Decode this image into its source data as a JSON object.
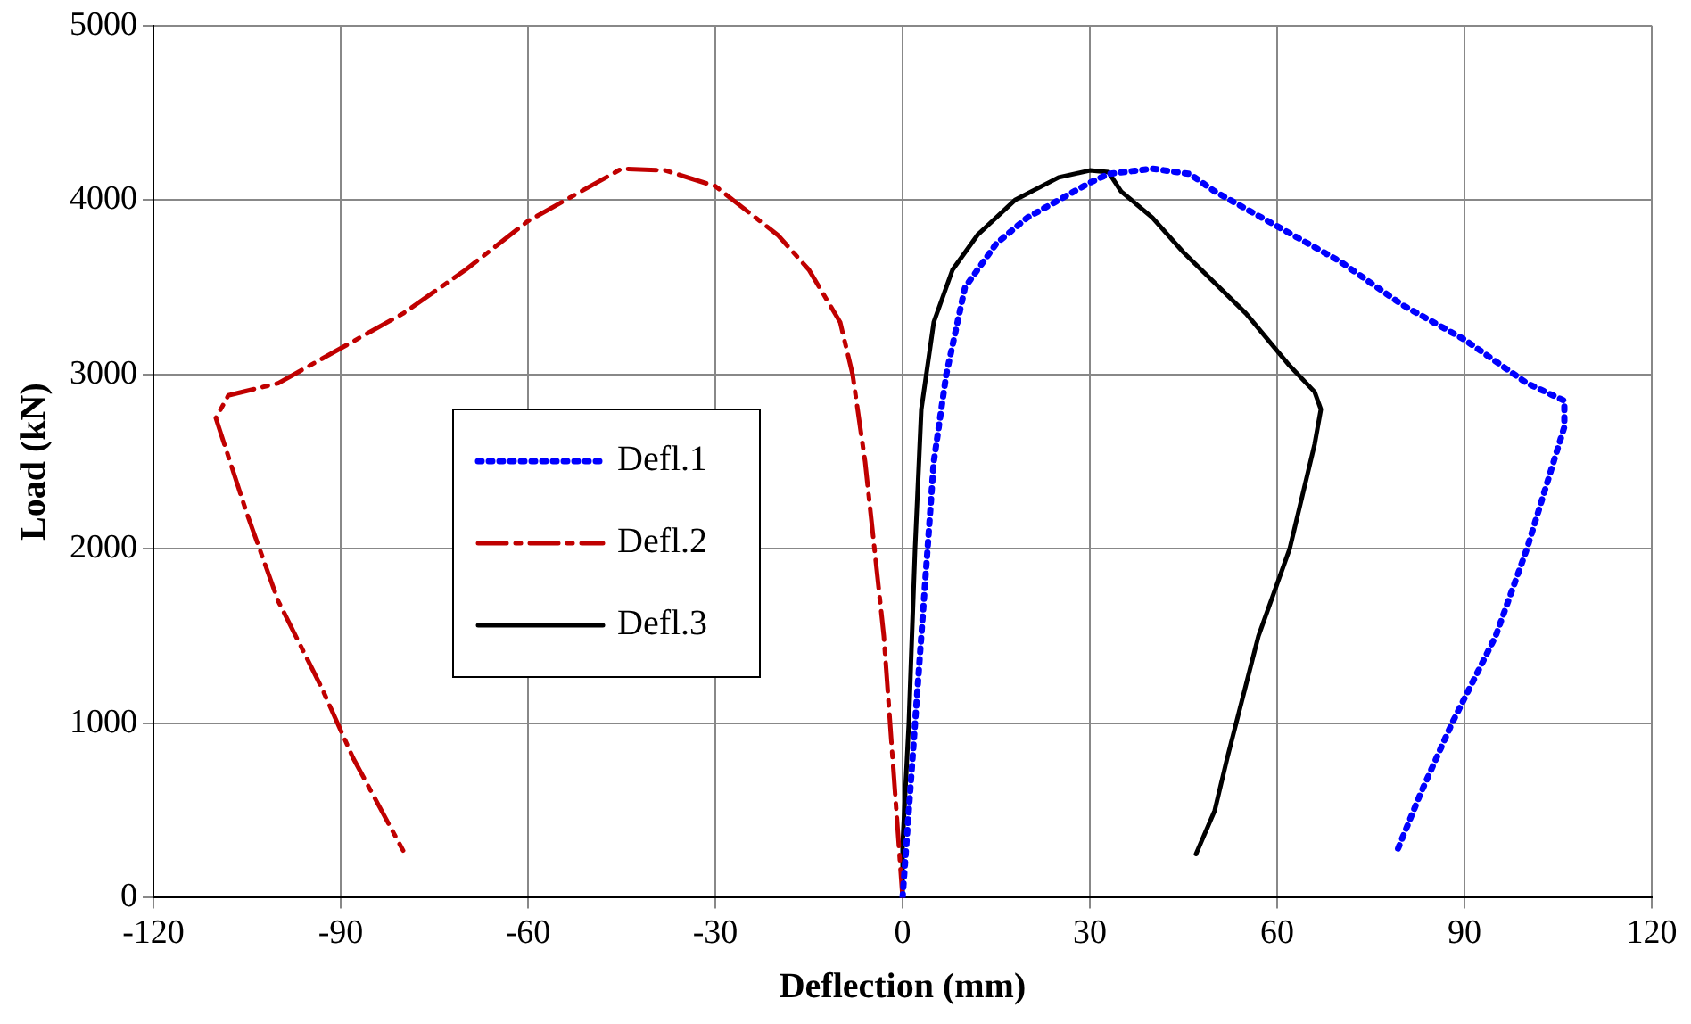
{
  "chart_data": {
    "type": "line",
    "xlabel": "Deflection (mm)",
    "ylabel": "Load (kN)",
    "xlim": [
      -120,
      120
    ],
    "xticks": [
      -120,
      -90,
      -60,
      -30,
      0,
      30,
      60,
      90,
      120
    ],
    "ylim": [
      0,
      5000
    ],
    "yticks": [
      0,
      1000,
      2000,
      3000,
      4000,
      5000
    ],
    "grid": true,
    "legend": "left",
    "marker": "none",
    "series": [
      {
        "name": "Defl.1",
        "color": "#0000ff",
        "line_style": "dotted",
        "x": [
          0,
          2,
          5,
          7,
          10,
          15,
          20,
          30,
          33,
          40,
          46,
          50,
          60,
          70,
          80,
          90,
          100,
          106,
          106,
          100,
          95,
          88,
          83,
          79
        ],
        "values": [
          0,
          1000,
          2500,
          3000,
          3500,
          3750,
          3900,
          4100,
          4150,
          4180,
          4150,
          4050,
          3850,
          3650,
          3400,
          3200,
          2950,
          2850,
          2700,
          2000,
          1500,
          1000,
          600,
          250
        ]
      },
      {
        "name": "Defl.2",
        "color": "#c00000",
        "line_style": "dashed",
        "x": [
          0,
          -1,
          -3,
          -6,
          -8,
          -10,
          -15,
          -20,
          -30,
          -38,
          -45,
          -50,
          -60,
          -70,
          -80,
          -90,
          -100,
          -108,
          -110,
          -105,
          -100,
          -93,
          -88,
          -80
        ],
        "values": [
          0,
          500,
          1500,
          2500,
          3000,
          3300,
          3600,
          3800,
          4080,
          4170,
          4180,
          4080,
          3880,
          3600,
          3350,
          3150,
          2950,
          2880,
          2750,
          2200,
          1700,
          1200,
          800,
          270
        ]
      },
      {
        "name": "Defl.3",
        "color": "#000000",
        "line_style": "solid",
        "x": [
          0,
          0,
          1,
          2,
          3,
          5,
          8,
          12,
          18,
          25,
          30,
          33,
          35,
          40,
          45,
          55,
          62,
          66,
          67,
          66,
          62,
          57,
          52,
          50,
          47
        ],
        "values": [
          0,
          300,
          1000,
          2000,
          2800,
          3300,
          3600,
          3800,
          4000,
          4130,
          4170,
          4160,
          4050,
          3900,
          3700,
          3350,
          3050,
          2900,
          2800,
          2600,
          2000,
          1500,
          800,
          500,
          250
        ]
      }
    ]
  }
}
